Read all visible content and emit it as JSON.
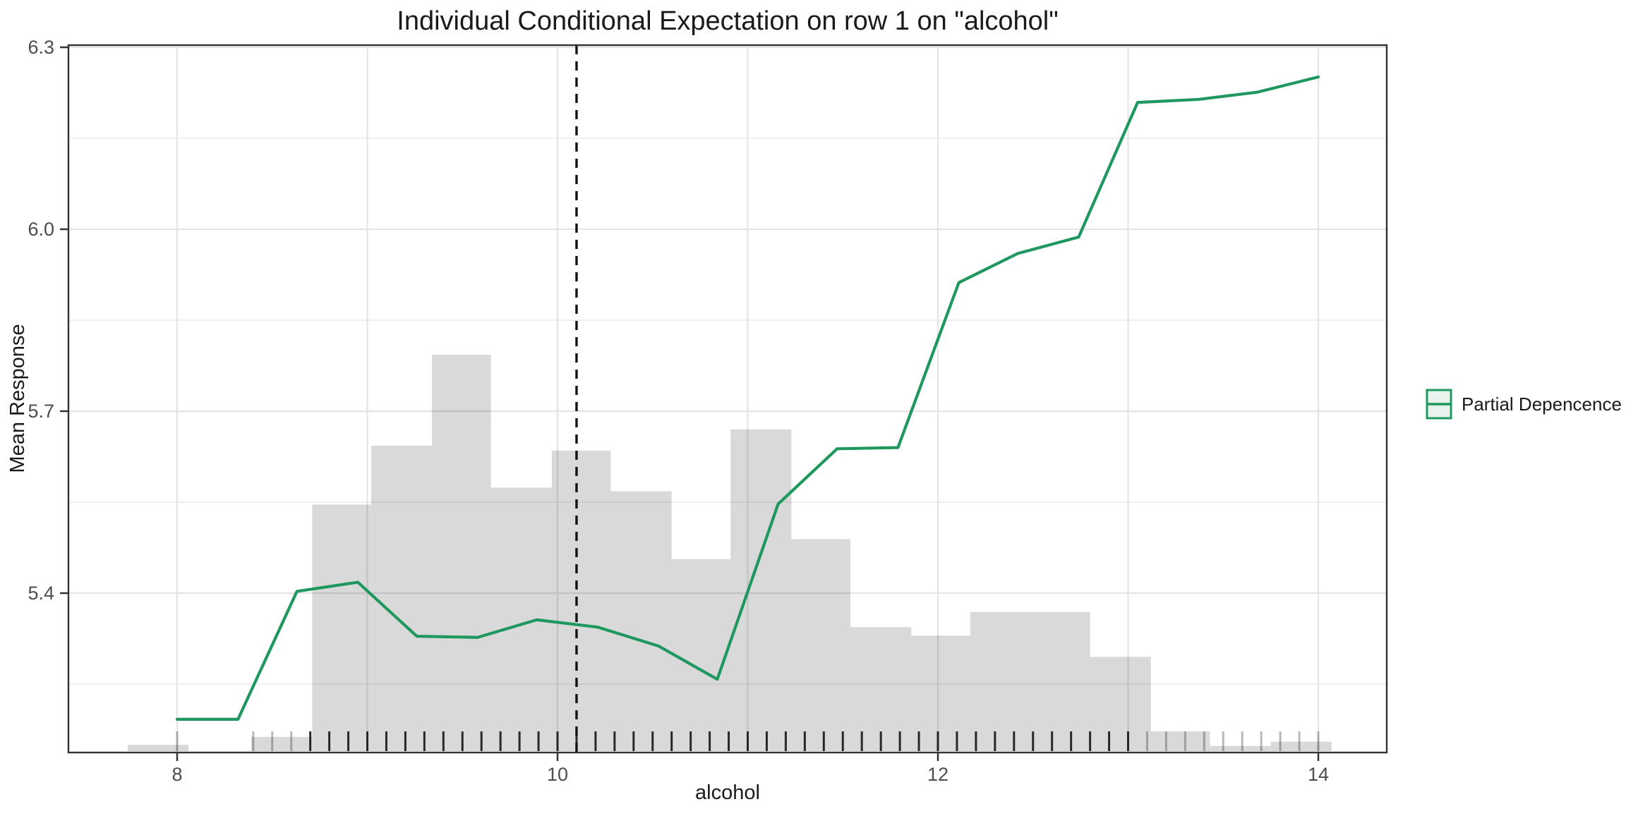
{
  "title": "Individual Conditional Expectation on row 1 on \"alcohol\"",
  "legend": {
    "label": "Partial Depencence"
  },
  "colors": {
    "pdp_green": "#1f9860",
    "legend_key_fill": "#e8f3ed",
    "histogram_gray": "#d9d9d9",
    "gridline": "#e4e4e4",
    "minor_gridline": "#ededed",
    "panel_border": "#333333",
    "tick_label_gray": "#4d4d4d",
    "text_black": "#1a1a1a",
    "dashed_line": "#111111"
  },
  "chart_data": {
    "type": "line",
    "title": "Individual Conditional Expectation on row 1 on \"alcohol\"",
    "xlabel": "alcohol",
    "ylabel": "Mean Response",
    "xlim": [
      7.43,
      14.36
    ],
    "ylim": [
      5.137,
      6.3
    ],
    "grid": "on",
    "legend_position": "right",
    "x_ticks": [
      {
        "v": 8,
        "label": "8"
      },
      {
        "v": 10,
        "label": "10"
      },
      {
        "v": 12,
        "label": "12"
      },
      {
        "v": 14,
        "label": "14"
      }
    ],
    "x_gridlines": [
      8,
      9,
      10,
      11,
      12,
      13,
      14
    ],
    "y_ticks": [
      {
        "v": 6.3,
        "label": "6.3"
      },
      {
        "v": 6.0,
        "label": "6.0"
      },
      {
        "v": 5.7,
        "label": "5.7"
      },
      {
        "v": 5.4,
        "label": "5.4"
      }
    ],
    "y_minor_gridlines": [
      5.25,
      5.55,
      5.85,
      6.15
    ],
    "reference_vline_x": 10.1,
    "series": [
      {
        "name": "Partial Depencence",
        "type": "line",
        "color": "#1f9860",
        "x": [
          8.0,
          8.32,
          8.63,
          8.95,
          9.26,
          9.58,
          9.89,
          10.21,
          10.53,
          10.84,
          11.16,
          11.47,
          11.79,
          12.11,
          12.42,
          12.74,
          13.05,
          13.37,
          13.68,
          14.0
        ],
        "y": [
          5.192,
          5.192,
          5.403,
          5.418,
          5.329,
          5.327,
          5.356,
          5.344,
          5.313,
          5.258,
          5.547,
          5.638,
          5.64,
          5.912,
          5.96,
          5.987,
          6.209,
          6.214,
          6.226,
          6.251
        ]
      }
    ],
    "histogram": {
      "baseline": 5.137,
      "bars": [
        {
          "x0": 7.74,
          "x1": 8.06,
          "top": 5.15
        },
        {
          "x0": 8.39,
          "x1": 8.71,
          "top": 5.163
        },
        {
          "x0": 8.71,
          "x1": 9.02,
          "top": 5.546
        },
        {
          "x0": 9.02,
          "x1": 9.34,
          "top": 5.643
        },
        {
          "x0": 9.34,
          "x1": 9.65,
          "top": 5.793
        },
        {
          "x0": 9.65,
          "x1": 9.97,
          "top": 5.574
        },
        {
          "x0": 9.97,
          "x1": 10.28,
          "top": 5.635
        },
        {
          "x0": 10.28,
          "x1": 10.6,
          "top": 5.568
        },
        {
          "x0": 10.6,
          "x1": 10.91,
          "top": 5.456
        },
        {
          "x0": 10.91,
          "x1": 11.23,
          "top": 5.67
        },
        {
          "x0": 11.23,
          "x1": 11.54,
          "top": 5.489
        },
        {
          "x0": 11.54,
          "x1": 11.86,
          "top": 5.344
        },
        {
          "x0": 11.86,
          "x1": 12.17,
          "top": 5.33
        },
        {
          "x0": 12.17,
          "x1": 12.8,
          "top": 5.369
        },
        {
          "x0": 12.8,
          "x1": 13.12,
          "top": 5.295
        },
        {
          "x0": 13.12,
          "x1": 13.43,
          "top": 5.172
        },
        {
          "x0": 13.43,
          "x1": 13.75,
          "top": 5.148
        },
        {
          "x0": 13.75,
          "x1": 14.07,
          "top": 5.155
        }
      ]
    },
    "rug": {
      "top_value": 5.172,
      "dark_x": [
        8.7,
        8.8,
        8.9,
        9.0,
        9.1,
        9.2,
        9.3,
        9.4,
        9.5,
        9.6,
        9.7,
        9.8,
        9.9,
        10.0,
        10.1,
        10.2,
        10.3,
        10.4,
        10.5,
        10.6,
        10.7,
        10.8,
        10.9,
        11.0,
        11.1,
        11.2,
        11.3,
        11.4,
        11.5,
        11.6,
        11.7,
        11.8,
        11.9,
        12.0,
        12.1,
        12.2,
        12.3,
        12.4,
        12.5,
        12.6,
        12.7,
        12.8,
        12.9,
        13.0
      ],
      "light_x": [
        8.0,
        8.4,
        8.5,
        8.6,
        13.1,
        13.2,
        13.3,
        13.4,
        13.5,
        13.6,
        13.7,
        13.8,
        13.9,
        14.0
      ]
    }
  }
}
